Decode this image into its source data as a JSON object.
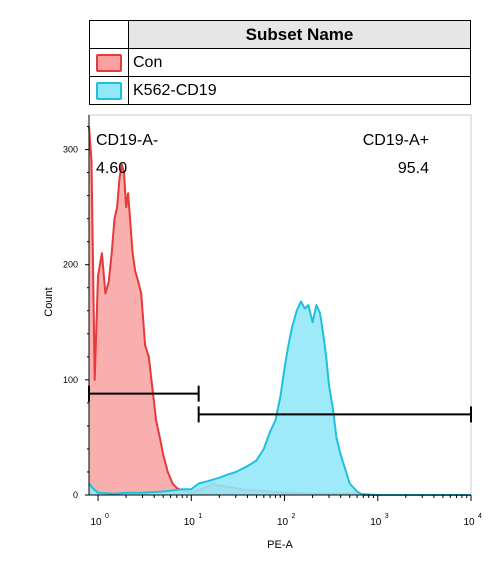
{
  "legend": {
    "header": "Subset Name",
    "items": [
      {
        "name": "Con",
        "fill": "#f9a1a1",
        "stroke": "#e63939"
      },
      {
        "name": "K562-CD19",
        "fill": "#93e8f8",
        "stroke": "#1ec0e0"
      }
    ]
  },
  "chart_data": {
    "type": "area",
    "xlabel": "PE-A",
    "ylabel": "Count",
    "xscale": "log",
    "xlim": [
      0.8,
      10000
    ],
    "ylim": [
      0,
      330
    ],
    "yticks": [
      0,
      100,
      200,
      300
    ],
    "xticks": [
      {
        "value": 1,
        "base": "10",
        "exp": "0"
      },
      {
        "value": 10,
        "base": "10",
        "exp": "1"
      },
      {
        "value": 100,
        "base": "10",
        "exp": "2"
      },
      {
        "value": 1000,
        "base": "10",
        "exp": "3"
      },
      {
        "value": 10000,
        "base": "10",
        "exp": "4"
      }
    ],
    "series": [
      {
        "name": "Con",
        "fill": "#f9a1a1",
        "stroke": "#e63939",
        "x": [
          0.8,
          0.85,
          0.92,
          1.0,
          1.1,
          1.2,
          1.3,
          1.4,
          1.5,
          1.6,
          1.7,
          1.8,
          1.9,
          2.0,
          2.1,
          2.2,
          2.35,
          2.5,
          2.7,
          2.9,
          3.2,
          3.5,
          3.8,
          4.2,
          4.6,
          5.0,
          5.6,
          6.3,
          7.0,
          8.0,
          9.0,
          10,
          12,
          14,
          17,
          20,
          25,
          30,
          40,
          50,
          70,
          100,
          150,
          200,
          300,
          500,
          1000,
          3000,
          10000
        ],
        "y": [
          320,
          290,
          100,
          190,
          210,
          175,
          185,
          210,
          240,
          250,
          275,
          287,
          280,
          250,
          262,
          240,
          210,
          195,
          185,
          175,
          130,
          120,
          95,
          65,
          50,
          35,
          20,
          10,
          6,
          4,
          3,
          2,
          4,
          6,
          10,
          8,
          7,
          6,
          4,
          4,
          3,
          2,
          2,
          1,
          1,
          1,
          0,
          0,
          0
        ]
      },
      {
        "name": "K562-CD19",
        "fill": "#93e8f8",
        "stroke": "#1ec0e0",
        "x": [
          0.8,
          0.9,
          1.0,
          1.5,
          2.0,
          3.0,
          5.0,
          8.0,
          10,
          12,
          15,
          20,
          25,
          30,
          40,
          50,
          60,
          70,
          80,
          90,
          100,
          110,
          120,
          135,
          150,
          165,
          180,
          200,
          220,
          240,
          260,
          280,
          300,
          330,
          360,
          400,
          450,
          500,
          600,
          700,
          800,
          1000,
          1500,
          3000,
          10000
        ],
        "y": [
          10,
          5,
          2,
          1,
          2,
          2,
          3,
          5,
          5,
          10,
          12,
          15,
          18,
          20,
          25,
          30,
          40,
          55,
          65,
          85,
          110,
          130,
          145,
          160,
          168,
          162,
          165,
          150,
          165,
          158,
          140,
          120,
          95,
          75,
          50,
          35,
          22,
          10,
          3,
          0,
          0,
          0,
          0,
          0,
          0
        ]
      }
    ],
    "gates": [
      {
        "name": "CD19-A-",
        "value": "4.60",
        "from": 0.8,
        "to": 12,
        "level": 88,
        "name_align": "start",
        "value_align": "start"
      },
      {
        "name": "CD19-A+",
        "value": "95.4",
        "from": 12,
        "to": 10000,
        "level": 70,
        "name_align": "end",
        "value_align": "end"
      }
    ]
  }
}
